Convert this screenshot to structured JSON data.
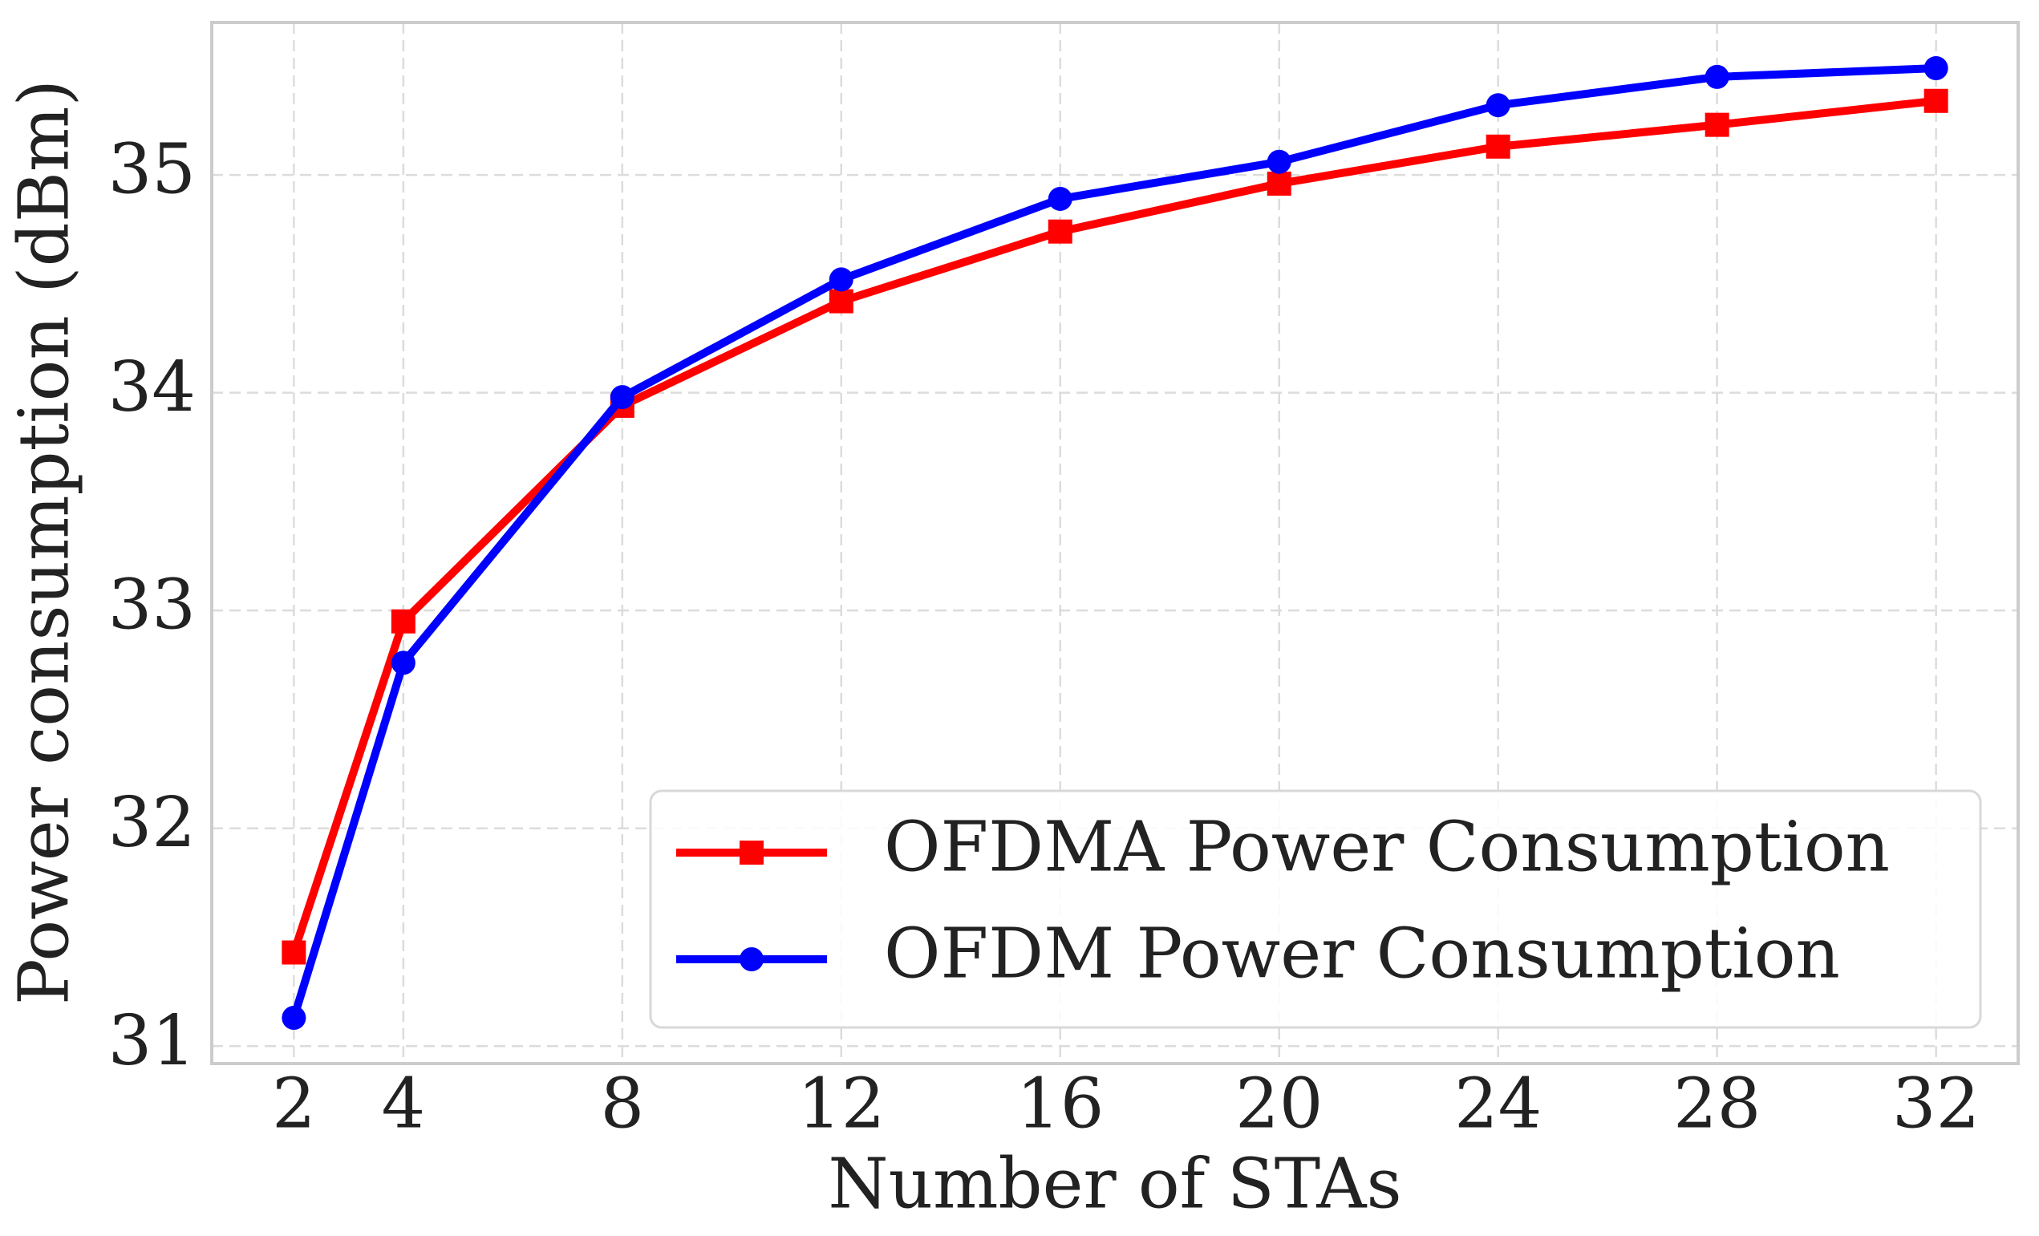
{
  "chart_data": {
    "type": "line",
    "x_label": "Number of STAs",
    "y_label": "Power consumption (dBm)",
    "x": [
      2,
      4,
      8,
      12,
      16,
      20,
      24,
      28,
      32
    ],
    "series": [
      {
        "name": "OFDMA Power Consumption",
        "color": "#ff0000",
        "marker": "square",
        "values": [
          31.43,
          32.95,
          33.94,
          34.42,
          34.74,
          34.96,
          35.13,
          35.23,
          35.34
        ]
      },
      {
        "name": "OFDM Power Consumption",
        "color": "#0000ff",
        "marker": "circle",
        "values": [
          31.13,
          32.76,
          33.98,
          34.52,
          34.89,
          35.06,
          35.32,
          35.45,
          35.49
        ]
      }
    ],
    "xlim": [
      0.5,
      33.5
    ],
    "ylim": [
      30.92,
      35.7
    ],
    "xticks": [
      2,
      4,
      8,
      12,
      16,
      20,
      24,
      28,
      32
    ],
    "yticks": [
      31,
      32,
      33,
      34,
      35
    ],
    "grid": true,
    "legend": "lower right"
  }
}
